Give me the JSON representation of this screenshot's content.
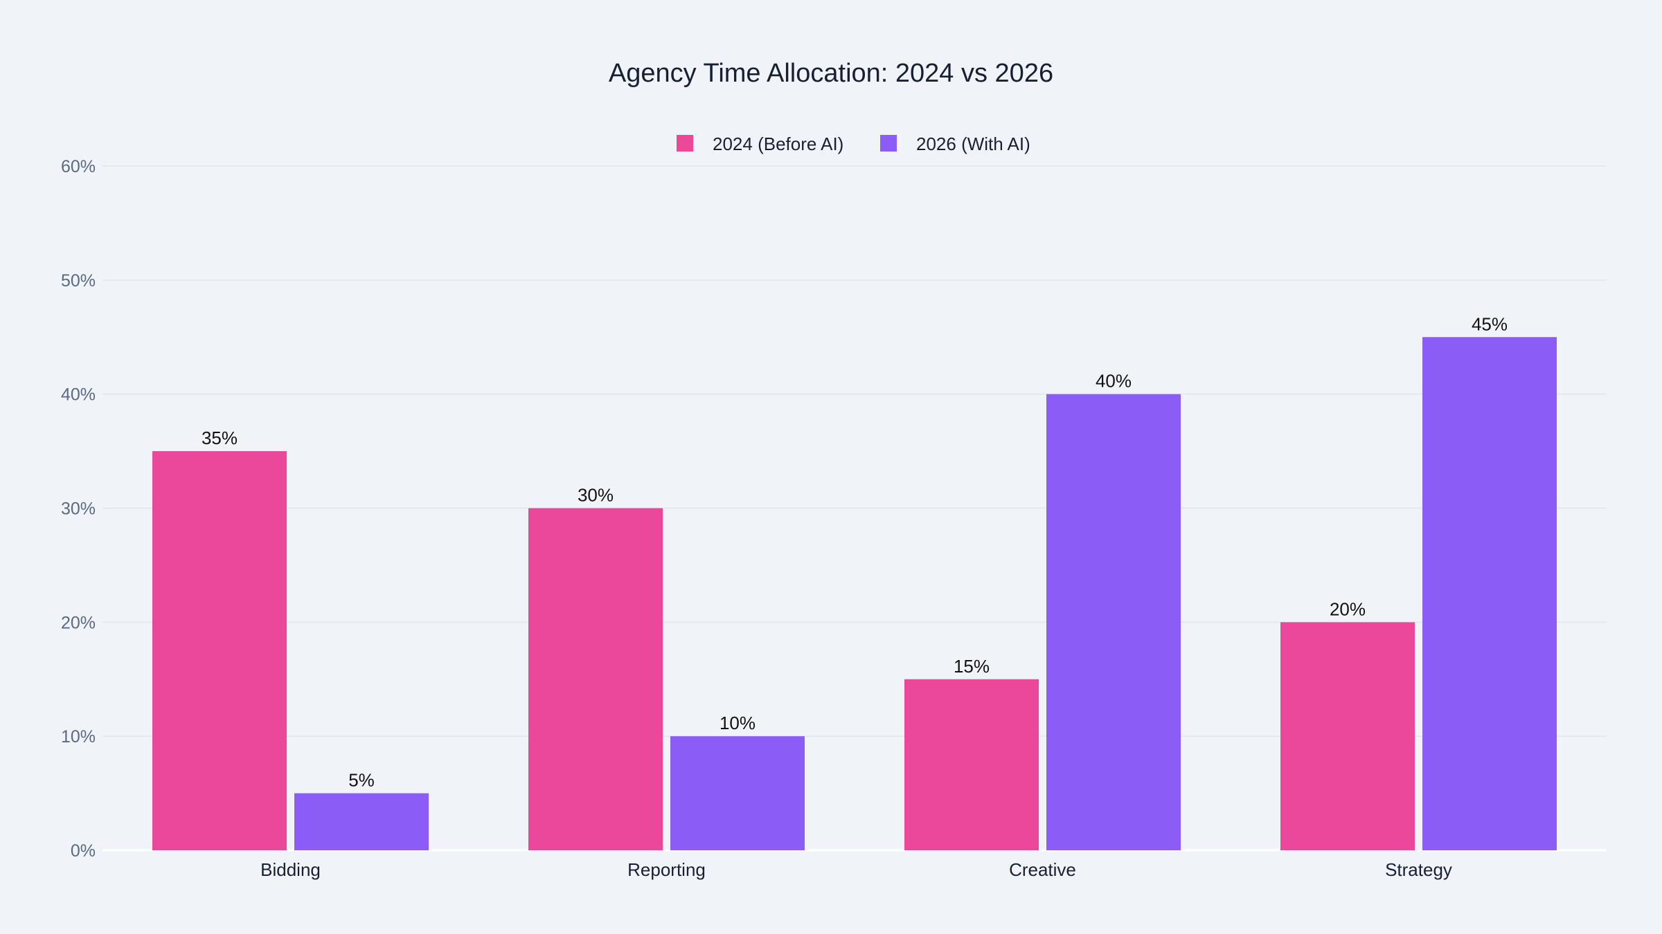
{
  "chart_data": {
    "type": "bar",
    "title": "Agency Time Allocation: 2024 vs 2026",
    "categories": [
      "Bidding",
      "Reporting",
      "Creative",
      "Strategy"
    ],
    "series": [
      {
        "name": "2024 (Before AI)",
        "color": "#ec4899",
        "values": [
          35,
          30,
          15,
          20
        ],
        "labels": [
          "35%",
          "30%",
          "15%",
          "20%"
        ]
      },
      {
        "name": "2026 (With AI)",
        "color": "#8b5cf6",
        "values": [
          5,
          10,
          40,
          45
        ],
        "labels": [
          "5%",
          "10%",
          "40%",
          "45%"
        ]
      }
    ],
    "ylim": [
      0,
      60
    ],
    "yticks": [
      0,
      10,
      20,
      30,
      40,
      50,
      60
    ],
    "ytick_labels": [
      "0%",
      "10%",
      "20%",
      "30%",
      "40%",
      "50%",
      "60%"
    ],
    "xlabel": "",
    "ylabel": "",
    "grid": true,
    "legend_position": "top-center",
    "background": "#f0f4f9"
  }
}
